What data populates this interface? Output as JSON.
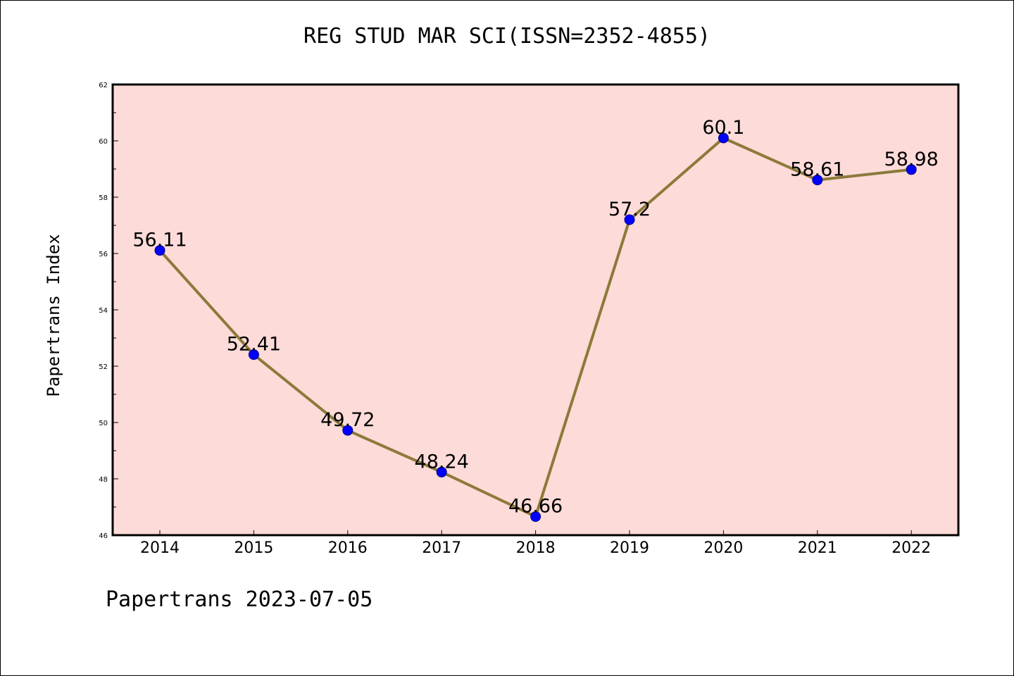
{
  "chart_data": {
    "type": "line",
    "title": "REG STUD MAR SCI(ISSN=2352-4855)",
    "xlabel": "",
    "ylabel": "Papertrans Index",
    "footer": "Papertrans 2023-07-05",
    "categories": [
      "2014",
      "2015",
      "2016",
      "2017",
      "2018",
      "2019",
      "2020",
      "2021",
      "2022"
    ],
    "values": [
      56.11,
      52.41,
      49.72,
      48.24,
      46.66,
      57.2,
      60.1,
      58.61,
      58.98
    ],
    "data_labels": [
      "56.11",
      "52.41",
      "49.72",
      "48.24",
      "46.66",
      "57.2",
      "60.1",
      "58.61",
      "58.98"
    ],
    "ylim": [
      46,
      62
    ],
    "y_ticks": [
      "46",
      "48",
      "50",
      "52",
      "54",
      "56",
      "58",
      "60",
      "62"
    ],
    "grid": false,
    "legend": "none",
    "colors": {
      "plot_background": "#fddbd8",
      "line": "#8b7a3a",
      "marker_fill": "#0000ff",
      "marker_edge": "#00008b",
      "axis": "#000000"
    }
  }
}
